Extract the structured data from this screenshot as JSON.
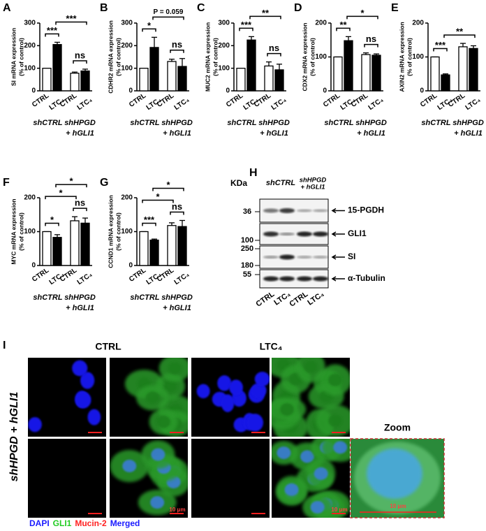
{
  "chart_data": [
    {
      "type": "bar",
      "label": "A",
      "y_label": "SI mRNA expression",
      "y_label_unit": "(% of control)",
      "categories": [
        "CTRL",
        "LTC₄",
        "CTRL",
        "LTC₄"
      ],
      "groups": [
        "shCTRL",
        "shHPGD",
        "+ hGLI1"
      ],
      "values": [
        100,
        205,
        78,
        88
      ],
      "errors": [
        0,
        10,
        5,
        8
      ],
      "colors": [
        "#ffffff",
        "#000000",
        "#ffffff",
        "#000000"
      ],
      "ylim": [
        0,
        300
      ],
      "yticks": [
        0,
        100,
        200,
        300
      ],
      "significance": [
        {
          "from": 0,
          "to": 1,
          "label": "***"
        },
        {
          "from": 2,
          "to": 3,
          "label": "ns"
        },
        {
          "from": 1,
          "to": 3,
          "label": "***"
        }
      ]
    },
    {
      "type": "bar",
      "label": "B",
      "y_label": "CDHR2 mRNA expression",
      "y_label_unit": "(% of control)",
      "categories": [
        "CTRL",
        "LTC₄",
        "CTRL",
        "LTC₄"
      ],
      "groups": [
        "shCTRL",
        "shHPGD",
        "+ hGLI1"
      ],
      "values": [
        100,
        192,
        130,
        108
      ],
      "errors": [
        0,
        45,
        10,
        35
      ],
      "colors": [
        "#ffffff",
        "#000000",
        "#ffffff",
        "#000000"
      ],
      "ylim": [
        0,
        300
      ],
      "yticks": [
        0,
        100,
        200,
        300
      ],
      "significance": [
        {
          "from": 0,
          "to": 1,
          "label": "*"
        },
        {
          "from": 2,
          "to": 3,
          "label": "ns"
        },
        {
          "from": 1,
          "to": 3,
          "label": "P = 0.059"
        }
      ]
    },
    {
      "type": "bar",
      "label": "C",
      "y_label": "MUC2 mRNA expression",
      "y_label_unit": "(% of control)",
      "categories": [
        "CTRL",
        "LTC₄",
        "CTRL",
        "LTC₄"
      ],
      "groups": [
        "shCTRL",
        "shHPGD",
        "+ hGLI1"
      ],
      "values": [
        100,
        225,
        110,
        93
      ],
      "errors": [
        0,
        15,
        18,
        25
      ],
      "colors": [
        "#ffffff",
        "#000000",
        "#ffffff",
        "#000000"
      ],
      "ylim": [
        0,
        300
      ],
      "yticks": [
        0,
        100,
        200,
        300
      ],
      "significance": [
        {
          "from": 0,
          "to": 1,
          "label": "***"
        },
        {
          "from": 2,
          "to": 3,
          "label": "ns"
        },
        {
          "from": 1,
          "to": 3,
          "label": "**"
        }
      ]
    },
    {
      "type": "bar",
      "label": "D",
      "y_label": "CDX2 mRNA expression",
      "y_label_unit": "(% of control)",
      "categories": [
        "CTRL",
        "LTC₄",
        "CTRL",
        "LTC₄"
      ],
      "groups": [
        "shCTRL",
        "shHPGD",
        "+ hGLI1"
      ],
      "values": [
        100,
        148,
        107,
        105
      ],
      "errors": [
        0,
        12,
        5,
        4
      ],
      "colors": [
        "#ffffff",
        "#000000",
        "#ffffff",
        "#000000"
      ],
      "ylim": [
        0,
        200
      ],
      "yticks": [
        0,
        100,
        200
      ],
      "significance": [
        {
          "from": 0,
          "to": 1,
          "label": "**"
        },
        {
          "from": 2,
          "to": 3,
          "label": "ns"
        },
        {
          "from": 1,
          "to": 3,
          "label": "*"
        }
      ]
    },
    {
      "type": "bar",
      "label": "E",
      "y_label": "AXIN2 mRNA expression",
      "y_label_unit": "(% of control)",
      "categories": [
        "CTRL",
        "LTC₄",
        "CTRL",
        "LTC₄"
      ],
      "groups": [
        "shCTRL",
        "shHPGD",
        "+ hGLI1"
      ],
      "values": [
        100,
        47,
        130,
        125
      ],
      "errors": [
        0,
        3,
        10,
        8
      ],
      "colors": [
        "#ffffff",
        "#000000",
        "#ffffff",
        "#000000"
      ],
      "ylim": [
        0,
        200
      ],
      "yticks": [
        0,
        100,
        200
      ],
      "significance": [
        {
          "from": 0,
          "to": 1,
          "label": "***"
        },
        {
          "from": 1,
          "to": 3,
          "label": "**"
        }
      ]
    },
    {
      "type": "bar",
      "label": "F",
      "y_label": "MYC mRNA expression",
      "y_label_unit": "(% of control)",
      "categories": [
        "CTRL",
        "LTC₄",
        "CTRL",
        "LTC₄"
      ],
      "groups": [
        "shCTRL",
        "shHPGD",
        "+ hGLI1"
      ],
      "values": [
        100,
        83,
        132,
        125
      ],
      "errors": [
        0,
        8,
        12,
        15
      ],
      "colors": [
        "#ffffff",
        "#000000",
        "#ffffff",
        "#000000"
      ],
      "ylim": [
        0,
        200
      ],
      "yticks": [
        0,
        100,
        200
      ],
      "significance": [
        {
          "from": 0,
          "to": 1,
          "label": "*"
        },
        {
          "from": 2,
          "to": 3,
          "label": "ns"
        },
        {
          "from": 0,
          "to": 2,
          "label": "*"
        },
        {
          "from": 1,
          "to": 3,
          "label": "*"
        }
      ]
    },
    {
      "type": "bar",
      "label": "G",
      "y_label": "CCND1 mRNA expression",
      "y_label_unit": "(% of control)",
      "categories": [
        "CTRL",
        "LTC₄",
        "CTRL",
        "LTC₄"
      ],
      "groups": [
        "shCTRL",
        "shHPGD",
        "+ hGLI1"
      ],
      "values": [
        100,
        75,
        118,
        115
      ],
      "errors": [
        0,
        3,
        8,
        18
      ],
      "colors": [
        "#ffffff",
        "#000000",
        "#ffffff",
        "#000000"
      ],
      "ylim": [
        0,
        200
      ],
      "yticks": [
        0,
        100,
        200
      ],
      "significance": [
        {
          "from": 0,
          "to": 1,
          "label": "***"
        },
        {
          "from": 2,
          "to": 3,
          "label": "ns"
        },
        {
          "from": 0,
          "to": 2,
          "label": "*"
        },
        {
          "from": 1,
          "to": 3,
          "label": "*"
        }
      ]
    }
  ],
  "blot": {
    "label": "H",
    "unit": "KDa",
    "markers": [
      36,
      100,
      250,
      180,
      55
    ],
    "proteins": [
      "15-PGDH",
      "GLI1",
      "SI",
      "α-Tubulin"
    ],
    "lanes": [
      "CTRL",
      "LTC₄",
      "CTRL",
      "LTC₄"
    ],
    "groups": [
      "shCTRL",
      "shHPGD",
      "+ hGLI1"
    ]
  },
  "imaging": {
    "label": "I",
    "columns": [
      "CTRL",
      "LTC₄"
    ],
    "row_label": "shHPGD + hGLI1",
    "zoom": "Zoom",
    "scale_bar": "10 μm",
    "stains": [
      {
        "name": "DAPI",
        "color": "#1a1aff"
      },
      {
        "name": "GLI1",
        "color": "#22cc22"
      },
      {
        "name": "Mucin-2",
        "color": "#ff2020"
      },
      {
        "name": "Merged",
        "color": "#1a1aff"
      }
    ]
  }
}
